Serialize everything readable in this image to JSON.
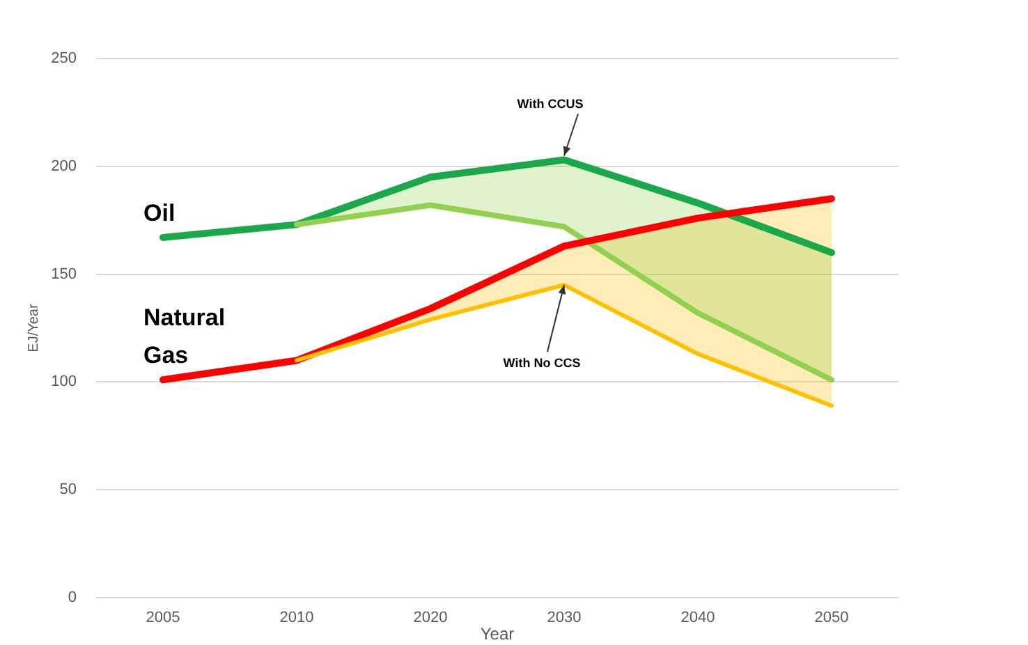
{
  "chart_data": {
    "type": "line",
    "xlabel": "Year",
    "ylabel": "EJ/Year",
    "categories": [
      "2005",
      "2010",
      "2020",
      "2030",
      "2040",
      "2050"
    ],
    "ylim": [
      0,
      250
    ],
    "yticks": [
      0,
      50,
      100,
      150,
      200,
      250
    ],
    "grid": "y",
    "legend": false,
    "marker": "none",
    "line_style": "solid",
    "series": [
      {
        "name": "Oil",
        "color": "#1aa84a",
        "values": [
          167,
          173,
          195,
          203,
          183,
          160
        ]
      },
      {
        "color": "#92d050",
        "values": [
          null,
          173,
          182,
          172,
          132,
          101
        ],
        "lower": [
          null,
          173,
          182,
          172,
          132,
          101
        ],
        "upper": [
          null,
          173,
          195,
          203,
          183,
          160
        ]
      },
      {
        "name": "Natural Gas",
        "color": "#ff0000",
        "values": [
          101,
          110,
          134,
          163,
          176,
          185
        ]
      },
      {
        "color": "#ffc000",
        "values": [
          null,
          110,
          129,
          145,
          113,
          89
        ],
        "lower": [
          null,
          110,
          129,
          145,
          113,
          89
        ],
        "upper": [
          null,
          110,
          134,
          163,
          176,
          185
        ]
      }
    ],
    "annotations": [
      {
        "text": "With CCUS",
        "x": "2030",
        "y": 203
      },
      {
        "text": "With No CCS",
        "x": "2030",
        "y": 145
      }
    ]
  }
}
